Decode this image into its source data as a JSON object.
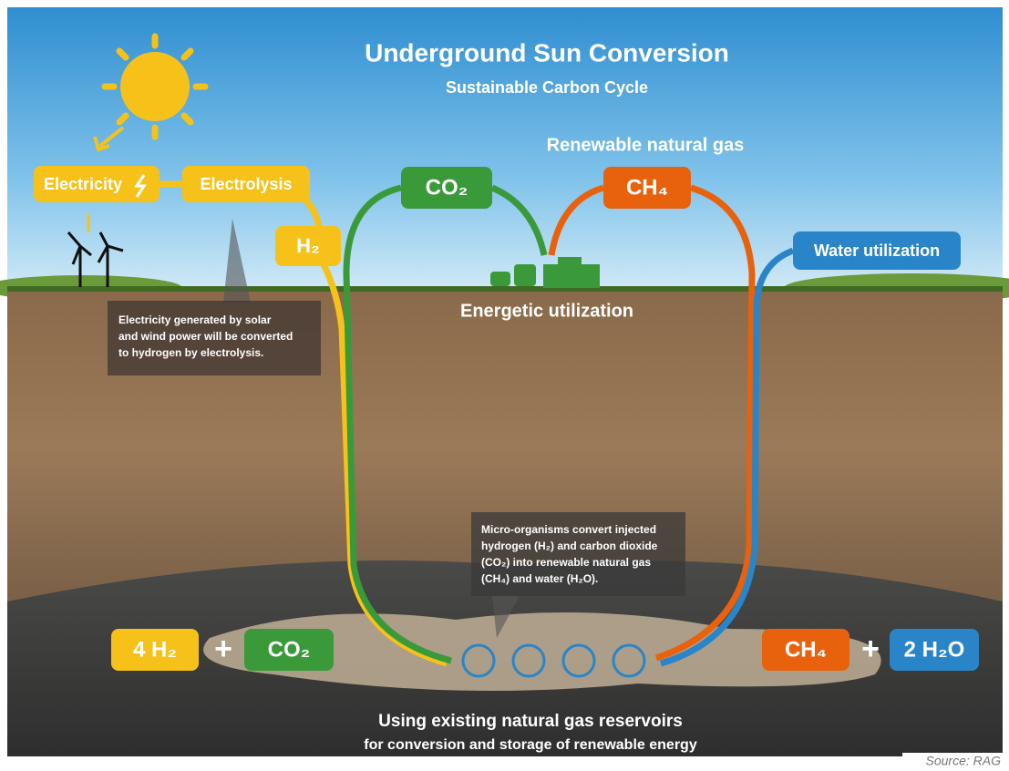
{
  "header": {
    "title": "Underground Sun Conversion",
    "subtitle": "Sustainable Carbon Cycle"
  },
  "labels": {
    "renewable_gas": "Renewable natural gas",
    "energetic": "Energetic utilization"
  },
  "nodes": [
    {
      "label": "Electricity"
    },
    {
      "label": "Electrolysis"
    },
    {
      "label": "H₂"
    },
    {
      "label": "CO₂"
    },
    {
      "label": "CH₄"
    },
    {
      "label": "Water utilization"
    }
  ],
  "notes": {
    "electrolysis": [
      "Electricity generated by solar",
      "and wind power will be converted",
      "to hydrogen by electrolysis."
    ],
    "microbes": [
      "Micro-organisms convert injected",
      "hydrogen (H₂) and carbon dioxide",
      "(CO₂) into renewable natural gas",
      "(CH₄) and water (H₂O)."
    ]
  },
  "equation": {
    "left": [
      "4 H₂",
      "+",
      "CO₂"
    ],
    "right": [
      "CH₄",
      "+",
      "2 H₂O"
    ]
  },
  "footer": {
    "lines": [
      "Using existing natural gas reservoirs",
      "for conversion and storage of renewable energy"
    ],
    "source": "Source: RAG"
  }
}
